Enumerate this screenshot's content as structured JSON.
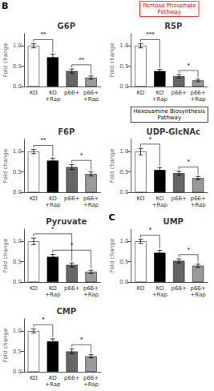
{
  "chart_data": [
    {
      "type": "bar",
      "title": "G6P",
      "ylabel": "Fold change",
      "panel_label": "B",
      "categories": [
        "KO",
        "KO\n+Rap",
        "p66+",
        "p66+\n+Rap"
      ],
      "values": [
        1.0,
        0.72,
        0.38,
        0.22
      ],
      "errors": [
        0.05,
        0.08,
        0.05,
        0.04
      ],
      "colors": [
        "white",
        "black",
        "#666666",
        "#999999"
      ],
      "ylim": [
        0,
        1.3
      ],
      "yticks": [
        {
          "value": 0,
          "label": "0.0"
        },
        {
          "value": 0.5,
          "label": "0.5"
        },
        {
          "value": 1.0,
          "label": "1.0"
        }
      ],
      "grid": false,
      "annotations": [
        {
          "text": "**",
          "between": [
            "KO",
            "KO\n+Rap"
          ]
        },
        {
          "text": "**",
          "between": [
            "p66+",
            "p66+\n+Rap"
          ]
        }
      ]
    },
    {
      "type": "bar",
      "title": "R5P",
      "ylabel": "Fold change",
      "categories": [
        "KO",
        "KO\n+Rap",
        "p66+",
        "p66+\n+Rap"
      ],
      "values": [
        1.0,
        0.38,
        0.25,
        0.15
      ],
      "errors": [
        0.05,
        0.04,
        0.04,
        0.03
      ],
      "colors": [
        "white",
        "black",
        "#666666",
        "#999999"
      ],
      "ylim": [
        0,
        1.3
      ],
      "yticks": [
        {
          "value": 0,
          "label": "0.0"
        },
        {
          "value": 0.5,
          "label": "0.5"
        },
        {
          "value": 1.0,
          "label": "1.0"
        }
      ],
      "grid": false,
      "annotations": [
        {
          "text": "***",
          "between": [
            "KO",
            "KO\n+Rap"
          ]
        },
        {
          "text": "*",
          "between": [
            "p66+",
            "p66+\n+Rap"
          ]
        },
        {
          "text": "Pentose Phosphate\nPathway",
          "color": "red"
        }
      ]
    },
    {
      "type": "bar",
      "title": "F6P",
      "ylabel": "Fold change",
      "categories": [
        "KO",
        "KO\n+Rap",
        "p66+",
        "p66+\n+Rap"
      ],
      "values": [
        1.0,
        0.78,
        0.62,
        0.45
      ],
      "errors": [
        0.05,
        0.06,
        0.06,
        0.05
      ],
      "colors": [
        "white",
        "black",
        "#666666",
        "#999999"
      ],
      "ylim": [
        0,
        1.3
      ],
      "yticks": [
        {
          "value": 0,
          "label": "0.0"
        },
        {
          "value": 0.5,
          "label": "0.5"
        },
        {
          "value": 1.0,
          "label": "1.0"
        }
      ],
      "grid": false,
      "annotations": [
        {
          "text": "**",
          "between": [
            "KO",
            "KO\n+Rap"
          ]
        },
        {
          "text": "*",
          "between": [
            "p66+",
            "p66+\n+Rap"
          ]
        }
      ]
    },
    {
      "type": "bar",
      "title": "UDP-GlcNAc",
      "ylabel": "Fold change",
      "categories": [
        "KO",
        "KO\n+Rap",
        "p66+",
        "p66+\n+Rap"
      ],
      "values": [
        1.0,
        0.55,
        0.47,
        0.35
      ],
      "errors": [
        0.08,
        0.06,
        0.05,
        0.04
      ],
      "colors": [
        "white",
        "black",
        "#666666",
        "#999999"
      ],
      "ylim": [
        0,
        1.3
      ],
      "yticks": [
        {
          "value": 0,
          "label": "0.0"
        },
        {
          "value": 0.5,
          "label": "0.5"
        },
        {
          "value": 1.0,
          "label": "1.0"
        }
      ],
      "grid": false,
      "annotations": [
        {
          "text": "*",
          "between": [
            "KO",
            "KO\n+Rap"
          ]
        },
        {
          "text": "*",
          "between": [
            "p66+",
            "p66+\n+Rap"
          ]
        },
        {
          "text": "Hexosamine Biosynthesis\nPathway",
          "color": "black"
        }
      ]
    },
    {
      "type": "bar",
      "title": "Pyruvate",
      "ylabel": "Fold change",
      "categories": [
        "KO",
        "KO\n+Rap",
        "p66+",
        "p66+\n+Rap"
      ],
      "values": [
        1.0,
        0.62,
        0.42,
        0.25
      ],
      "errors": [
        0.08,
        0.06,
        0.05,
        0.04
      ],
      "colors": [
        "white",
        "black",
        "#666666",
        "#999999"
      ],
      "ylim": [
        0,
        1.3
      ],
      "yticks": [
        {
          "value": 0,
          "label": "0.0"
        },
        {
          "value": 0.5,
          "label": "0.5"
        },
        {
          "value": 1.0,
          "label": "1.0"
        }
      ],
      "grid": false,
      "annotations": [
        {
          "text": "*",
          "between": [
            "KO",
            "p66+"
          ]
        },
        {
          "text": "*",
          "between": [
            "KO\n+Rap",
            "p66+\n+Rap"
          ]
        }
      ]
    },
    {
      "type": "bar",
      "title": "UMP",
      "ylabel": "Fold change",
      "panel_label": "C",
      "categories": [
        "KO",
        "KO\n+Rap",
        "p66+",
        "p66+\n+Rap"
      ],
      "values": [
        1.0,
        0.72,
        0.52,
        0.4
      ],
      "errors": [
        0.05,
        0.06,
        0.05,
        0.04
      ],
      "colors": [
        "white",
        "black",
        "#666666",
        "#999999"
      ],
      "ylim": [
        0,
        1.3
      ],
      "yticks": [
        {
          "value": 0,
          "label": "0.0"
        },
        {
          "value": 0.5,
          "label": "0.5"
        },
        {
          "value": 1.0,
          "label": "1.0"
        }
      ],
      "grid": false,
      "annotations": [
        {
          "text": "*",
          "between": [
            "KO",
            "KO\n+Rap"
          ]
        },
        {
          "text": "*",
          "between": [
            "p66+",
            "p66+\n+Rap"
          ]
        }
      ]
    },
    {
      "type": "bar",
      "title": "CMP",
      "ylabel": "Fold change",
      "categories": [
        "KO",
        "KO\n+Rap",
        "p66+",
        "p66+\n+Rap"
      ],
      "values": [
        1.0,
        0.75,
        0.5,
        0.38
      ],
      "errors": [
        0.05,
        0.06,
        0.06,
        0.04
      ],
      "colors": [
        "white",
        "black",
        "#666666",
        "#999999"
      ],
      "ylim": [
        0,
        1.3
      ],
      "yticks": [
        {
          "value": 0,
          "label": "0.0"
        },
        {
          "value": 0.5,
          "label": "0.5"
        },
        {
          "value": 1.0,
          "label": "1.0"
        }
      ],
      "grid": false,
      "annotations": [
        {
          "text": "*",
          "between": [
            "KO",
            "KO\n+Rap"
          ]
        },
        {
          "text": "*",
          "between": [
            "p66+",
            "p66+\n+Rap"
          ]
        }
      ]
    }
  ]
}
